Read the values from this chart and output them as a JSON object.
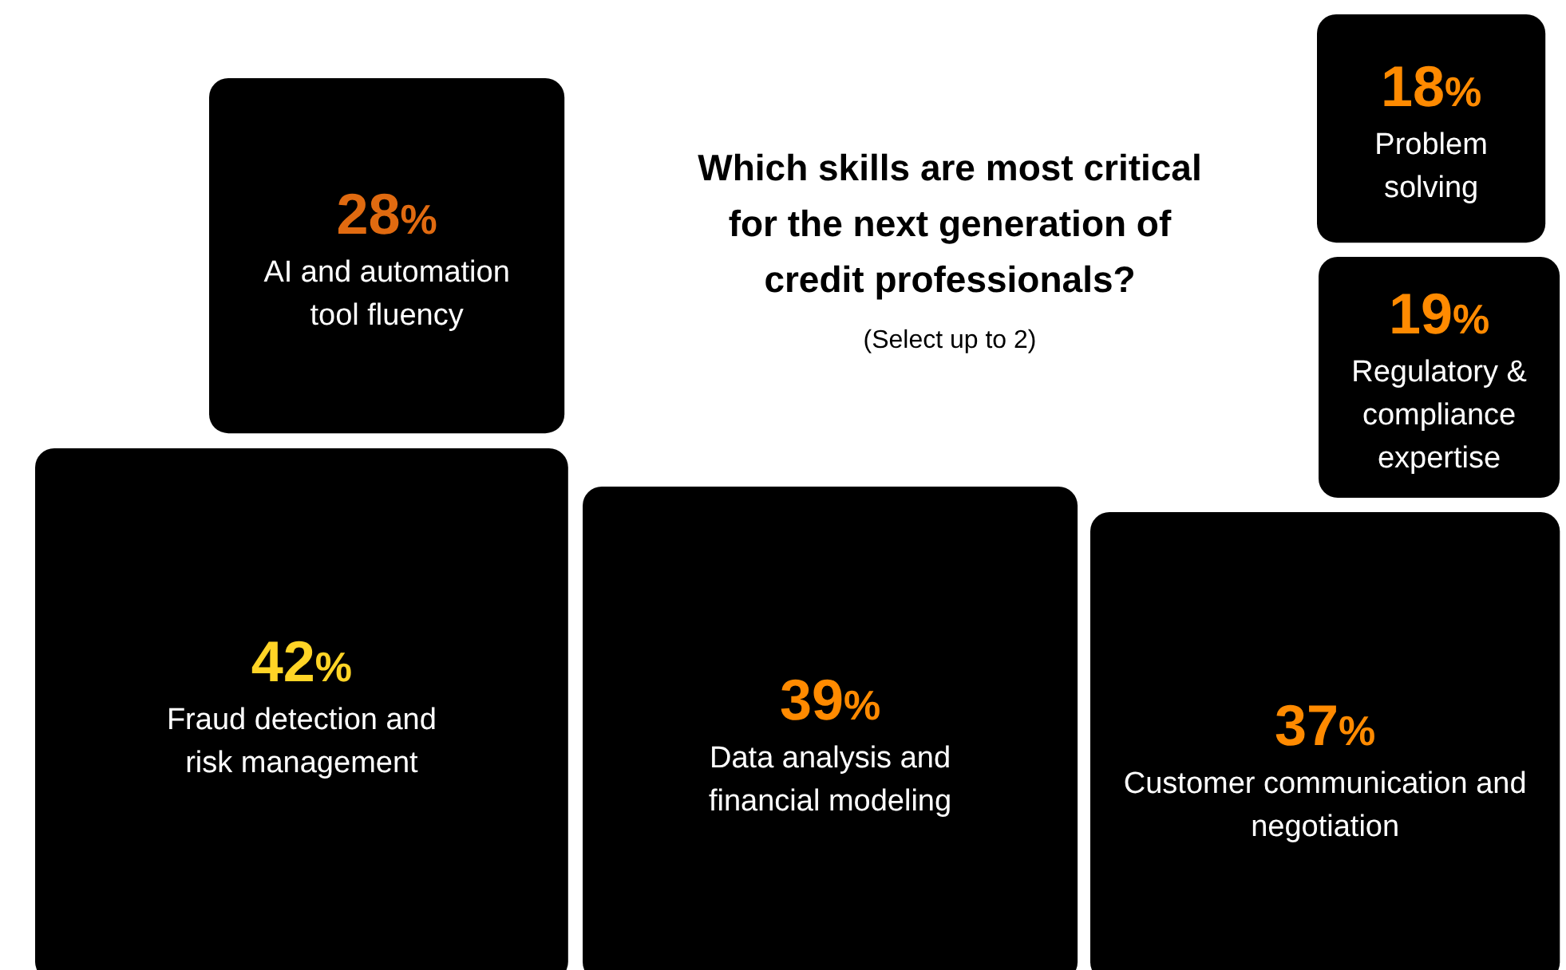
{
  "chart_data": {
    "type": "other",
    "title": "Which skills are most critical for the next generation of credit professionals?",
    "subtitle": "(Select up to 2)",
    "categories": [
      "Fraud detection and risk management",
      "Data analysis and financial modeling",
      "Customer communication and negotiation",
      "AI and automation tool fluency",
      "Problem solving",
      "Regulatory & compliance expertise"
    ],
    "values": [
      42,
      39,
      37,
      28,
      18,
      19
    ],
    "value_labels": [
      "42%",
      "39%",
      "37%",
      "28%",
      "18%",
      "19%"
    ],
    "colors": [
      "#000000",
      "#000000",
      "#000000",
      "#000000",
      "#000000",
      "#000000"
    ]
  }
}
